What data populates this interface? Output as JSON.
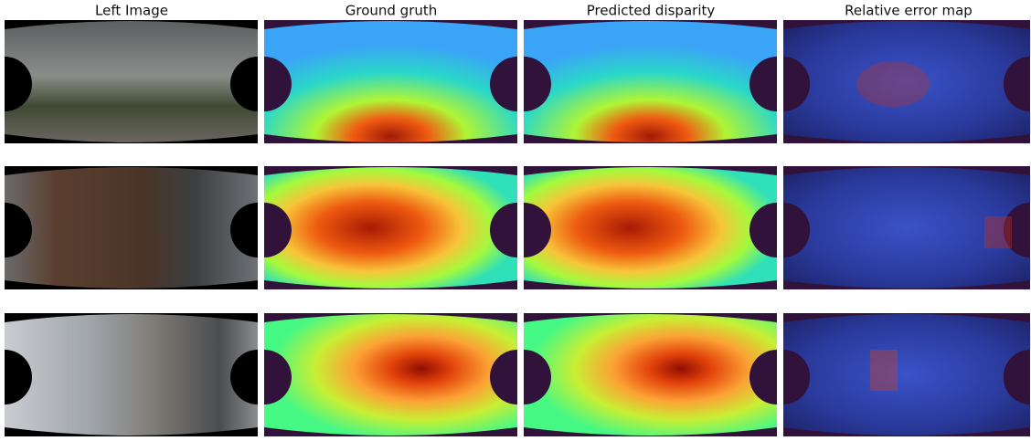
{
  "columns": [
    {
      "title": "Left Image"
    },
    {
      "title": "Ground gruth"
    },
    {
      "title": "Predicted disparity"
    },
    {
      "title": "Relative error map"
    }
  ]
}
